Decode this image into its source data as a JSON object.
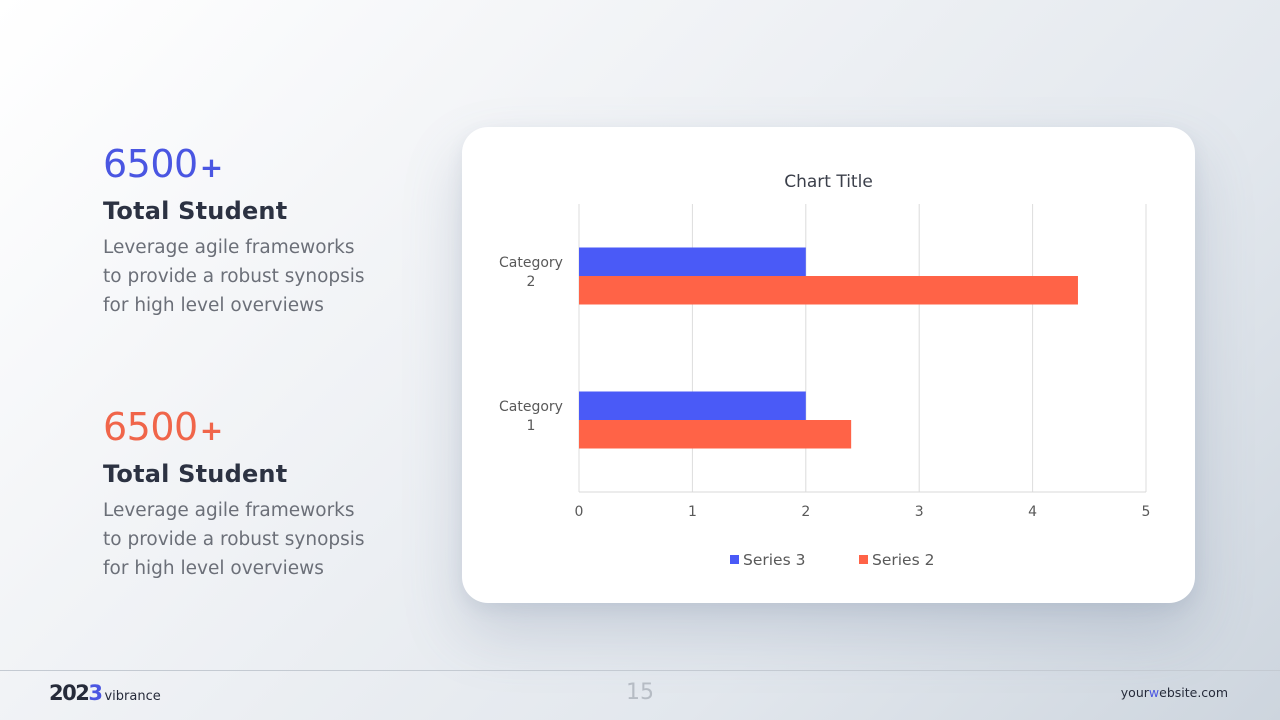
{
  "stats": [
    {
      "number": "6500",
      "suffix": "+",
      "heading": "Total Student",
      "lines": [
        "Leverage agile frameworks",
        "to provide a robust synopsis",
        "for high level overviews"
      ]
    },
    {
      "number": "6500",
      "suffix": "+",
      "heading": "Total Student",
      "lines": [
        "Leverage agile frameworks",
        "to provide a robust synopsis",
        "for high level overviews"
      ]
    }
  ],
  "colors": {
    "accent_blue": "#4a56e2",
    "accent_orange": "#f0654a",
    "series_blue": "#4a5af7",
    "series_orange": "#ff6347"
  },
  "chart_data": {
    "type": "bar",
    "orientation": "horizontal",
    "title": "Chart Title",
    "categories": [
      [
        "Category",
        "1"
      ],
      [
        "Category",
        "2"
      ]
    ],
    "series": [
      {
        "name": "Series 3",
        "color": "#4a5af7",
        "values": [
          2,
          2
        ]
      },
      {
        "name": "Series 2",
        "color": "#ff6347",
        "values": [
          2.4,
          4.4
        ]
      }
    ],
    "xlim": [
      0,
      5
    ],
    "xticks": [
      "0",
      "1",
      "2",
      "3",
      "4",
      "5"
    ],
    "xlabel": "",
    "ylabel": "",
    "grid": true,
    "legend": "bottom"
  },
  "footer": {
    "year_main": "202",
    "year_accent": "3",
    "brand": "vibrance",
    "page_number": "15",
    "website_prefix": "your",
    "website_accent": "w",
    "website_suffix": "ebsite.com"
  }
}
